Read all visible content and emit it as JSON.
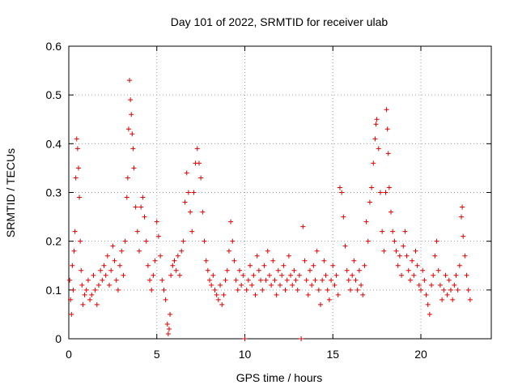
{
  "chart_data": {
    "type": "scatter",
    "title": "Day 101 of 2022, SRMTID for receiver ulab",
    "xlabel": "GPS time / hours",
    "ylabel": "SRMTID / TECUs",
    "xlim": [
      0,
      24
    ],
    "ylim": [
      0,
      0.6
    ],
    "grid": true,
    "x_ticks": [
      0,
      5,
      10,
      15,
      20
    ],
    "x_tick_labels": [
      "0",
      "5",
      "10",
      "15",
      "20"
    ],
    "y_ticks": [
      0,
      0.1,
      0.2,
      0.3,
      0.4,
      0.5,
      0.6
    ],
    "y_tick_labels": [
      "0",
      "0.1",
      "0.2",
      "0.3",
      "0.4",
      "0.5",
      "0.6"
    ],
    "marker": "+",
    "color": "#e00000",
    "series": [
      {
        "name": "SRMTID",
        "points": [
          [
            0.05,
            0.12
          ],
          [
            0.1,
            0.08
          ],
          [
            0.15,
            0.05
          ],
          [
            0.2,
            0.15
          ],
          [
            0.25,
            0.1
          ],
          [
            0.3,
            0.18
          ],
          [
            0.35,
            0.22
          ],
          [
            0.4,
            0.33
          ],
          [
            0.45,
            0.41
          ],
          [
            0.5,
            0.39
          ],
          [
            0.55,
            0.35
          ],
          [
            0.6,
            0.29
          ],
          [
            0.65,
            0.2
          ],
          [
            0.7,
            0.14
          ],
          [
            0.75,
            0.11
          ],
          [
            0.8,
            0.07
          ],
          [
            0.9,
            0.09
          ],
          [
            1.0,
            0.1
          ],
          [
            1.1,
            0.12
          ],
          [
            1.2,
            0.08
          ],
          [
            1.3,
            0.09
          ],
          [
            1.4,
            0.13
          ],
          [
            1.5,
            0.1
          ],
          [
            1.6,
            0.07
          ],
          [
            1.7,
            0.11
          ],
          [
            1.8,
            0.14
          ],
          [
            1.9,
            0.12
          ],
          [
            2.0,
            0.15
          ],
          [
            2.1,
            0.13
          ],
          [
            2.2,
            0.17
          ],
          [
            2.3,
            0.11
          ],
          [
            2.4,
            0.14
          ],
          [
            2.5,
            0.19
          ],
          [
            2.6,
            0.16
          ],
          [
            2.7,
            0.12
          ],
          [
            2.8,
            0.1
          ],
          [
            2.9,
            0.15
          ],
          [
            3.0,
            0.18
          ],
          [
            3.1,
            0.13
          ],
          [
            3.2,
            0.2
          ],
          [
            3.3,
            0.29
          ],
          [
            3.35,
            0.33
          ],
          [
            3.4,
            0.43
          ],
          [
            3.45,
            0.53
          ],
          [
            3.5,
            0.49
          ],
          [
            3.55,
            0.46
          ],
          [
            3.6,
            0.42
          ],
          [
            3.65,
            0.39
          ],
          [
            3.7,
            0.35
          ],
          [
            3.8,
            0.27
          ],
          [
            3.9,
            0.22
          ],
          [
            4.0,
            0.18
          ],
          [
            4.1,
            0.27
          ],
          [
            4.2,
            0.29
          ],
          [
            4.3,
            0.25
          ],
          [
            4.4,
            0.2
          ],
          [
            4.5,
            0.15
          ],
          [
            4.6,
            0.12
          ],
          [
            4.7,
            0.1
          ],
          [
            4.8,
            0.13
          ],
          [
            4.9,
            0.16
          ],
          [
            5.0,
            0.24
          ],
          [
            5.1,
            0.21
          ],
          [
            5.2,
            0.17
          ],
          [
            5.3,
            0.12
          ],
          [
            5.4,
            0.1
          ],
          [
            5.5,
            0.08
          ],
          [
            5.6,
            0.03
          ],
          [
            5.65,
            0.01
          ],
          [
            5.7,
            0.02
          ],
          [
            5.75,
            0.05
          ],
          [
            5.8,
            0.13
          ],
          [
            5.9,
            0.15
          ],
          [
            6.0,
            0.16
          ],
          [
            6.1,
            0.14
          ],
          [
            6.2,
            0.17
          ],
          [
            6.3,
            0.13
          ],
          [
            6.4,
            0.18
          ],
          [
            6.5,
            0.2
          ],
          [
            6.6,
            0.28
          ],
          [
            6.7,
            0.34
          ],
          [
            6.8,
            0.3
          ],
          [
            6.9,
            0.26
          ],
          [
            7.0,
            0.22
          ],
          [
            7.1,
            0.3
          ],
          [
            7.2,
            0.36
          ],
          [
            7.3,
            0.39
          ],
          [
            7.4,
            0.36
          ],
          [
            7.5,
            0.33
          ],
          [
            7.6,
            0.26
          ],
          [
            7.7,
            0.2
          ],
          [
            7.8,
            0.16
          ],
          [
            7.9,
            0.14
          ],
          [
            8.0,
            0.12
          ],
          [
            8.1,
            0.11
          ],
          [
            8.2,
            0.13
          ],
          [
            8.3,
            0.1
          ],
          [
            8.4,
            0.09
          ],
          [
            8.5,
            0.08
          ],
          [
            8.6,
            0.11
          ],
          [
            8.7,
            0.07
          ],
          [
            8.8,
            0.09
          ],
          [
            8.9,
            0.12
          ],
          [
            9.0,
            0.14
          ],
          [
            9.1,
            0.18
          ],
          [
            9.2,
            0.24
          ],
          [
            9.3,
            0.2
          ],
          [
            9.4,
            0.16
          ],
          [
            9.5,
            0.12
          ],
          [
            9.6,
            0.1
          ],
          [
            9.7,
            0.14
          ],
          [
            9.8,
            0.11
          ],
          [
            9.9,
            0.13
          ],
          [
            10.0,
            0.0
          ],
          [
            10.1,
            0.1
          ],
          [
            10.2,
            0.12
          ],
          [
            10.3,
            0.15
          ],
          [
            10.4,
            0.11
          ],
          [
            10.5,
            0.13
          ],
          [
            10.6,
            0.09
          ],
          [
            10.7,
            0.17
          ],
          [
            10.8,
            0.14
          ],
          [
            10.9,
            0.12
          ],
          [
            11.0,
            0.1
          ],
          [
            11.1,
            0.15
          ],
          [
            11.2,
            0.12
          ],
          [
            11.3,
            0.18
          ],
          [
            11.4,
            0.13
          ],
          [
            11.5,
            0.11
          ],
          [
            11.6,
            0.16
          ],
          [
            11.7,
            0.12
          ],
          [
            11.8,
            0.09
          ],
          [
            11.9,
            0.14
          ],
          [
            12.0,
            0.11
          ],
          [
            12.1,
            0.13
          ],
          [
            12.2,
            0.15
          ],
          [
            12.3,
            0.1
          ],
          [
            12.4,
            0.12
          ],
          [
            12.5,
            0.17
          ],
          [
            12.6,
            0.13
          ],
          [
            12.7,
            0.11
          ],
          [
            12.8,
            0.14
          ],
          [
            12.9,
            0.12
          ],
          [
            13.0,
            0.1
          ],
          [
            13.1,
            0.13
          ],
          [
            13.2,
            0.0
          ],
          [
            13.3,
            0.23
          ],
          [
            13.4,
            0.16
          ],
          [
            13.5,
            0.12
          ],
          [
            13.6,
            0.09
          ],
          [
            13.7,
            0.14
          ],
          [
            13.8,
            0.11
          ],
          [
            13.9,
            0.15
          ],
          [
            14.0,
            0.12
          ],
          [
            14.1,
            0.18
          ],
          [
            14.2,
            0.1
          ],
          [
            14.3,
            0.07
          ],
          [
            14.4,
            0.12
          ],
          [
            14.5,
            0.16
          ],
          [
            14.6,
            0.13
          ],
          [
            14.7,
            0.1
          ],
          [
            14.8,
            0.08
          ],
          [
            14.9,
            0.12
          ],
          [
            15.0,
            0.15
          ],
          [
            15.1,
            0.11
          ],
          [
            15.2,
            0.13
          ],
          [
            15.3,
            0.09
          ],
          [
            15.4,
            0.31
          ],
          [
            15.5,
            0.3
          ],
          [
            15.6,
            0.25
          ],
          [
            15.7,
            0.19
          ],
          [
            15.8,
            0.14
          ],
          [
            15.9,
            0.12
          ],
          [
            16.0,
            0.1
          ],
          [
            16.1,
            0.13
          ],
          [
            16.2,
            0.16
          ],
          [
            16.3,
            0.12
          ],
          [
            16.4,
            0.1
          ],
          [
            16.5,
            0.14
          ],
          [
            16.6,
            0.11
          ],
          [
            16.7,
            0.09
          ],
          [
            16.8,
            0.15
          ],
          [
            16.9,
            0.24
          ],
          [
            17.0,
            0.2
          ],
          [
            17.1,
            0.28
          ],
          [
            17.2,
            0.31
          ],
          [
            17.3,
            0.36
          ],
          [
            17.4,
            0.41
          ],
          [
            17.45,
            0.44
          ],
          [
            17.5,
            0.45
          ],
          [
            17.6,
            0.39
          ],
          [
            17.7,
            0.3
          ],
          [
            17.8,
            0.22
          ],
          [
            17.9,
            0.18
          ],
          [
            18.0,
            0.3
          ],
          [
            18.05,
            0.47
          ],
          [
            18.1,
            0.43
          ],
          [
            18.15,
            0.38
          ],
          [
            18.2,
            0.31
          ],
          [
            18.3,
            0.26
          ],
          [
            18.4,
            0.22
          ],
          [
            18.5,
            0.2
          ],
          [
            18.6,
            0.18
          ],
          [
            18.7,
            0.15
          ],
          [
            18.8,
            0.17
          ],
          [
            18.9,
            0.13
          ],
          [
            19.0,
            0.19
          ],
          [
            19.1,
            0.22
          ],
          [
            19.2,
            0.17
          ],
          [
            19.3,
            0.14
          ],
          [
            19.4,
            0.12
          ],
          [
            19.5,
            0.16
          ],
          [
            19.6,
            0.13
          ],
          [
            19.7,
            0.18
          ],
          [
            19.8,
            0.15
          ],
          [
            19.9,
            0.11
          ],
          [
            20.0,
            0.1
          ],
          [
            20.1,
            0.14
          ],
          [
            20.2,
            0.12
          ],
          [
            20.3,
            0.09
          ],
          [
            20.4,
            0.07
          ],
          [
            20.5,
            0.05
          ],
          [
            20.6,
            0.11
          ],
          [
            20.7,
            0.13
          ],
          [
            20.8,
            0.17
          ],
          [
            20.9,
            0.2
          ],
          [
            21.0,
            0.14
          ],
          [
            21.1,
            0.11
          ],
          [
            21.2,
            0.08
          ],
          [
            21.3,
            0.1
          ],
          [
            21.4,
            0.13
          ],
          [
            21.5,
            0.09
          ],
          [
            21.6,
            0.12
          ],
          [
            21.7,
            0.1
          ],
          [
            21.8,
            0.08
          ],
          [
            21.9,
            0.11
          ],
          [
            22.0,
            0.13
          ],
          [
            22.1,
            0.1
          ],
          [
            22.2,
            0.15
          ],
          [
            22.3,
            0.25
          ],
          [
            22.35,
            0.27
          ],
          [
            22.4,
            0.21
          ],
          [
            22.5,
            0.17
          ],
          [
            22.6,
            0.13
          ],
          [
            22.7,
            0.1
          ],
          [
            22.8,
            0.08
          ]
        ]
      }
    ]
  }
}
